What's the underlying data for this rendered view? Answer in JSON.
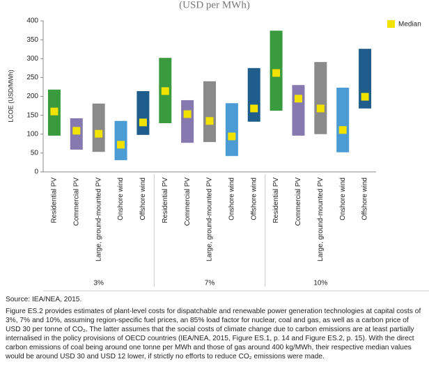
{
  "chart_data": {
    "type": "range_bar",
    "title": "(USD per MWh)",
    "y_label": "LCOE (USD/MWh)",
    "categories": [
      "Residential PV",
      "Commercial PV",
      "Large, ground-mounted PV",
      "Onshore wind",
      "Offshore wind",
      "Residential PV",
      "Commercial PV",
      "Large, ground-mounted PV",
      "Onshore wind",
      "Offshore wind",
      "Residential PV",
      "Commercial PV",
      "Large, ground-mounted PV",
      "Onshore wind",
      "Offshore wind"
    ],
    "groups": [
      "3%",
      "7%",
      "10%"
    ],
    "colors": [
      "#3a9b3e",
      "#8679b0",
      "#8a8a8a",
      "#4b9bd5",
      "#1f5e8c",
      "#3a9b3e",
      "#8679b0",
      "#8a8a8a",
      "#4b9bd5",
      "#1f5e8c",
      "#3a9b3e",
      "#8679b0",
      "#8a8a8a",
      "#4b9bd5",
      "#1f5e8c"
    ],
    "low": [
      96,
      59,
      53,
      31,
      98,
      129,
      77,
      79,
      42,
      133,
      162,
      96,
      100,
      52,
      168
    ],
    "high": [
      218,
      142,
      181,
      135,
      214,
      302,
      190,
      240,
      182,
      275,
      374,
      230,
      291,
      223,
      326
    ],
    "median": {
      "name": "Median",
      "color": "#f2e200",
      "values": [
        160,
        109,
        101,
        72,
        131,
        214,
        153,
        135,
        94,
        168,
        262,
        194,
        168,
        111,
        199
      ]
    },
    "ylim": [
      0,
      400
    ],
    "yticks": [
      0,
      50,
      100,
      150,
      200,
      250,
      300,
      350,
      400
    ],
    "grid": false
  },
  "source": "Source: IEA/NEA, 2015.",
  "caption": "Figure ES.2 provides estimates of plant-level costs for dispatchable and renewable power generation technologies at capital costs of 3%, 7% and 10%, assuming region-specific fuel prices, an 85% load factor for nuclear, coal and gas, as well as a carbon price of USD 30 per tonne of CO₂. The latter assumes that the social costs of climate change due to carbon emissions are at least partially internalised in the policy provisions of OECD countries (IEA/NEA, 2015, Figure ES.1, p. 14 and Figure ES.2, p. 15). With the direct carbon emissions of coal being around one tonne per MWh and those of gas around 400 kg/MWh, their respective median values would be around USD 30 and USD 12 lower, if strictly no efforts to reduce CO₂ emissions were made."
}
